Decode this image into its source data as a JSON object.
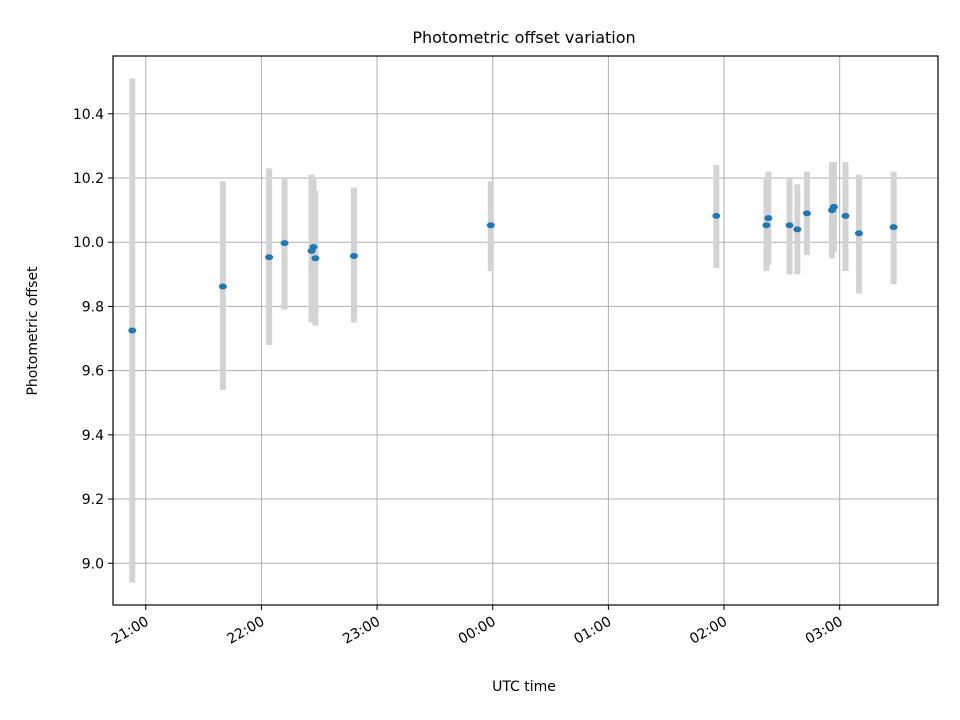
{
  "chart_data": {
    "type": "scatter",
    "title": "Photometric offset variation",
    "xlabel": "UTC time",
    "ylabel": "Photometric offset",
    "x_tick_labels": [
      "21:00",
      "22:00",
      "23:00",
      "00:00",
      "01:00",
      "02:00",
      "03:00"
    ],
    "y_tick_labels": [
      "9.0",
      "9.2",
      "9.4",
      "9.6",
      "9.8",
      "10.0",
      "10.2",
      "10.4"
    ],
    "y_ticks": [
      9.0,
      9.2,
      9.4,
      9.6,
      9.8,
      10.0,
      10.2,
      10.4
    ],
    "xlim": [
      "20:43",
      "03:51"
    ],
    "ylim": [
      8.87,
      10.58
    ],
    "grid": true,
    "point_color": "#1f77b4",
    "errorbar_color": "#d3d3d3",
    "points": [
      {
        "x": "20:53",
        "y": 9.725,
        "y_low": 8.94,
        "y_high": 10.51
      },
      {
        "x": "21:40",
        "y": 9.862,
        "y_low": 9.54,
        "y_high": 10.19
      },
      {
        "x": "22:04",
        "y": 9.953,
        "y_low": 9.68,
        "y_high": 10.23
      },
      {
        "x": "22:12",
        "y": 9.997,
        "y_low": 9.79,
        "y_high": 10.2
      },
      {
        "x": "22:26",
        "y": 9.973,
        "y_low": 9.75,
        "y_high": 10.21
      },
      {
        "x": "22:27",
        "y": 9.985,
        "y_low": 9.76,
        "y_high": 10.2
      },
      {
        "x": "22:28",
        "y": 9.95,
        "y_low": 9.74,
        "y_high": 10.16
      },
      {
        "x": "22:48",
        "y": 9.957,
        "y_low": 9.75,
        "y_high": 10.17
      },
      {
        "x": "23:59",
        "y": 10.053,
        "y_low": 9.91,
        "y_high": 10.19
      },
      {
        "x": "01:56",
        "y": 10.082,
        "y_low": 9.92,
        "y_high": 10.24
      },
      {
        "x": "02:22",
        "y": 10.053,
        "y_low": 9.91,
        "y_high": 10.2
      },
      {
        "x": "02:23",
        "y": 10.075,
        "y_low": 9.93,
        "y_high": 10.22
      },
      {
        "x": "02:34",
        "y": 10.053,
        "y_low": 9.9,
        "y_high": 10.2
      },
      {
        "x": "02:38",
        "y": 10.04,
        "y_low": 9.9,
        "y_high": 10.18
      },
      {
        "x": "02:43",
        "y": 10.09,
        "y_low": 9.96,
        "y_high": 10.22
      },
      {
        "x": "02:56",
        "y": 10.1,
        "y_low": 9.95,
        "y_high": 10.25
      },
      {
        "x": "02:57",
        "y": 10.11,
        "y_low": 9.97,
        "y_high": 10.25
      },
      {
        "x": "03:03",
        "y": 10.082,
        "y_low": 9.91,
        "y_high": 10.25
      },
      {
        "x": "03:10",
        "y": 10.028,
        "y_low": 9.84,
        "y_high": 10.21
      },
      {
        "x": "03:28",
        "y": 10.047,
        "y_low": 9.87,
        "y_high": 10.22
      }
    ]
  }
}
